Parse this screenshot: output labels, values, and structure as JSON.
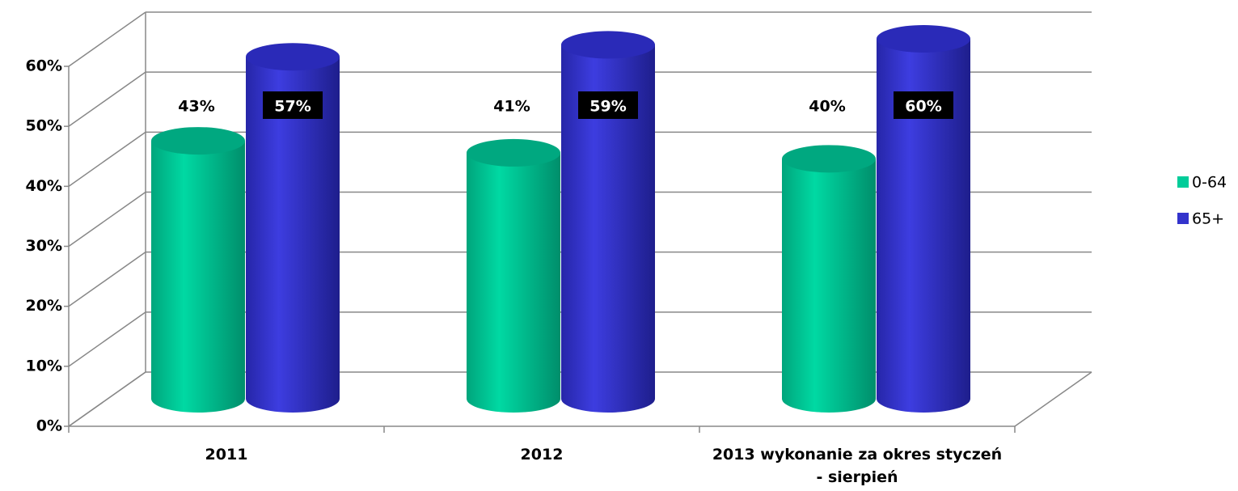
{
  "chart_data": {
    "type": "bar3d",
    "categories": [
      "2011",
      "2012",
      "2013 wykonanie za okres styczeń - sierpień"
    ],
    "series": [
      {
        "name": "0-64",
        "color": "#00cc99",
        "values": [
          43,
          41,
          40
        ],
        "value_labels": [
          "43%",
          "41%",
          "40%"
        ]
      },
      {
        "name": "65+",
        "color": "#3333cc",
        "values": [
          57,
          59,
          60
        ],
        "value_labels": [
          "57%",
          "59%",
          "60%"
        ]
      }
    ],
    "ylim": [
      0,
      60
    ],
    "yticks": [
      {
        "value": 0,
        "label": "0%"
      },
      {
        "value": 10,
        "label": "10%"
      },
      {
        "value": 20,
        "label": "20%"
      },
      {
        "value": 30,
        "label": "30%"
      },
      {
        "value": 40,
        "label": "40%"
      },
      {
        "value": 50,
        "label": "50%"
      },
      {
        "value": 60,
        "label": "60%"
      }
    ],
    "grid": true,
    "legend": "right"
  }
}
